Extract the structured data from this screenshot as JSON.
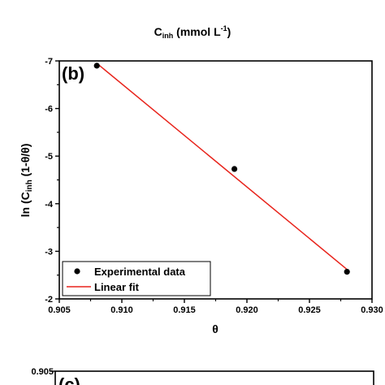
{
  "header": {
    "xlabel_main": "C",
    "xlabel_sub": "inh",
    "xlabel_unit": " (mmol L",
    "xlabel_sup": "-1",
    "xlabel_close": ")"
  },
  "chart_data": [
    {
      "panel_label": "(b)",
      "type": "scatter",
      "xlabel": "θ",
      "ylabel_main": "ln (C",
      "ylabel_sub": "inh",
      "ylabel_rest": " (1-θ/θ)",
      "xlim": [
        0.905,
        0.93
      ],
      "ylim": [
        -2,
        -7
      ],
      "y_axis_reversed": true,
      "xticks": [
        "0.905",
        "0.910",
        "0.915",
        "0.920",
        "0.925",
        "0.930"
      ],
      "yticks": [
        "-2",
        "-3",
        "-4",
        "-5",
        "-6",
        "-7"
      ],
      "series": [
        {
          "name": "Experimental data",
          "kind": "scatter",
          "color": "#000000",
          "x": [
            0.908,
            0.919,
            0.928
          ],
          "y": [
            -6.9,
            -4.73,
            -2.57
          ]
        },
        {
          "name": "Linear fit",
          "kind": "line",
          "color": "#e8231b",
          "x": [
            0.908,
            0.928
          ],
          "y": [
            -6.95,
            -2.62
          ]
        }
      ],
      "legend_position": "bottom-left"
    },
    {
      "panel_label": "(c)",
      "ytick_top": "0.905"
    }
  ]
}
